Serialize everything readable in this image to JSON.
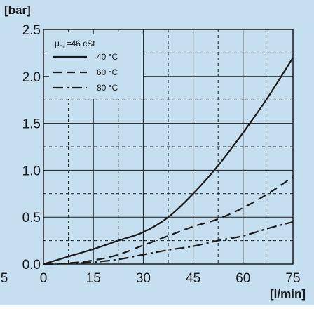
{
  "chart_data": {
    "type": "line",
    "title": "",
    "ylabel": "[bar]",
    "xlabel": "[l/min]",
    "xlim": [
      0,
      75
    ],
    "ylim": [
      0,
      2.5
    ],
    "x_ticks": [
      0,
      15,
      30,
      45,
      60,
      75
    ],
    "x_tick_labels": [
      "0",
      "15",
      "30",
      "45",
      "60",
      "75"
    ],
    "x_stray_label": "5",
    "y_ticks": [
      0,
      0.5,
      1.0,
      1.5,
      2.0,
      2.5
    ],
    "y_tick_labels": [
      "0.0",
      "0.5",
      "1.0",
      "1.5",
      "2.0",
      "2.5"
    ],
    "grid": "major solid, minor dashed",
    "legend": {
      "position": "top-left",
      "header_symbol": "μ",
      "header_subscript": "OIL",
      "header_value": "=46 cSt"
    },
    "series": [
      {
        "name": "40 °C",
        "style": "solid",
        "color": "#1a1a1a",
        "x": [
          0,
          7.5,
          15,
          22.5,
          30,
          37.5,
          45,
          52.5,
          60,
          67.5,
          75
        ],
        "y": [
          0,
          0.08,
          0.16,
          0.25,
          0.34,
          0.5,
          0.75,
          1.05,
          1.4,
          1.78,
          2.2
        ]
      },
      {
        "name": "60 °C",
        "style": "dashed",
        "color": "#1a1a1a",
        "x": [
          0,
          7.5,
          15,
          22.5,
          30,
          37.5,
          45,
          52.5,
          60,
          67.5,
          75
        ],
        "y": [
          0,
          0.01,
          0.04,
          0.1,
          0.2,
          0.3,
          0.4,
          0.48,
          0.6,
          0.75,
          0.93
        ]
      },
      {
        "name": "80 °C",
        "style": "dash-dot",
        "color": "#1a1a1a",
        "x": [
          0,
          7.5,
          15,
          22.5,
          30,
          37.5,
          45,
          52.5,
          60,
          67.5,
          75
        ],
        "y": [
          0,
          0.005,
          0.02,
          0.05,
          0.1,
          0.15,
          0.19,
          0.25,
          0.3,
          0.38,
          0.45
        ]
      }
    ]
  }
}
